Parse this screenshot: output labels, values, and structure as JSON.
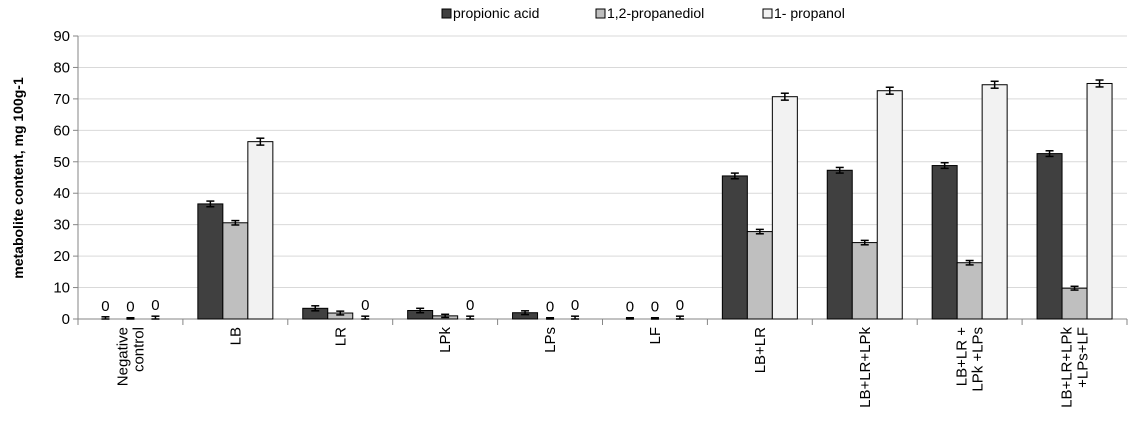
{
  "chart_data": {
    "type": "bar",
    "ylabel": "metabolite content, mg 100g-1",
    "ylim": [
      0,
      90
    ],
    "yticks": [
      0,
      10,
      20,
      30,
      40,
      50,
      60,
      70,
      80,
      90
    ],
    "grid": "horizontal",
    "legend_position": "top",
    "categories": [
      [
        "Negative",
        "control"
      ],
      [
        "LB"
      ],
      [
        "LR"
      ],
      [
        "LPk"
      ],
      [
        "LPs"
      ],
      [
        "LF"
      ],
      [
        "LB+LR"
      ],
      [
        "LB+LR+LPk"
      ],
      [
        "LB+LR +",
        "LPk +LPs"
      ],
      [
        "LB+LR+LPk",
        "+LPs+LF"
      ]
    ],
    "series": [
      {
        "name": "propionic acid",
        "color": "#404040",
        "values": [
          0,
          36.6,
          3.4,
          2.7,
          2.0,
          0,
          45.5,
          47.3,
          48.8,
          52.6
        ],
        "errors": [
          0.7,
          0.9,
          0.8,
          0.7,
          0.6,
          0.4,
          0.9,
          0.9,
          0.9,
          0.9
        ],
        "labels": [
          "0",
          "",
          "",
          "",
          "",
          "0",
          "",
          "",
          "",
          ""
        ]
      },
      {
        "name": "1,2-propanediol",
        "color": "#bfbfbf",
        "values": [
          0,
          30.6,
          1.9,
          1.0,
          0,
          0,
          27.8,
          24.3,
          17.9,
          9.8
        ],
        "errors": [
          0.4,
          0.7,
          0.6,
          0.5,
          0.4,
          0.4,
          0.7,
          0.7,
          0.7,
          0.6
        ],
        "labels": [
          "0",
          "",
          "",
          "",
          "0",
          "0",
          "",
          "",
          "",
          ""
        ]
      },
      {
        "name": "1- propanol",
        "color": "#f2f2f2",
        "values": [
          0,
          56.4,
          0,
          0,
          0,
          0,
          70.7,
          72.6,
          74.5,
          74.9
        ],
        "errors": [
          0.9,
          1.1,
          0.9,
          0.9,
          0.9,
          0.9,
          1.1,
          1.1,
          1.1,
          1.1
        ],
        "labels": [
          "0",
          "",
          "0",
          "0",
          "0",
          "0",
          "",
          "",
          "",
          ""
        ]
      }
    ]
  }
}
